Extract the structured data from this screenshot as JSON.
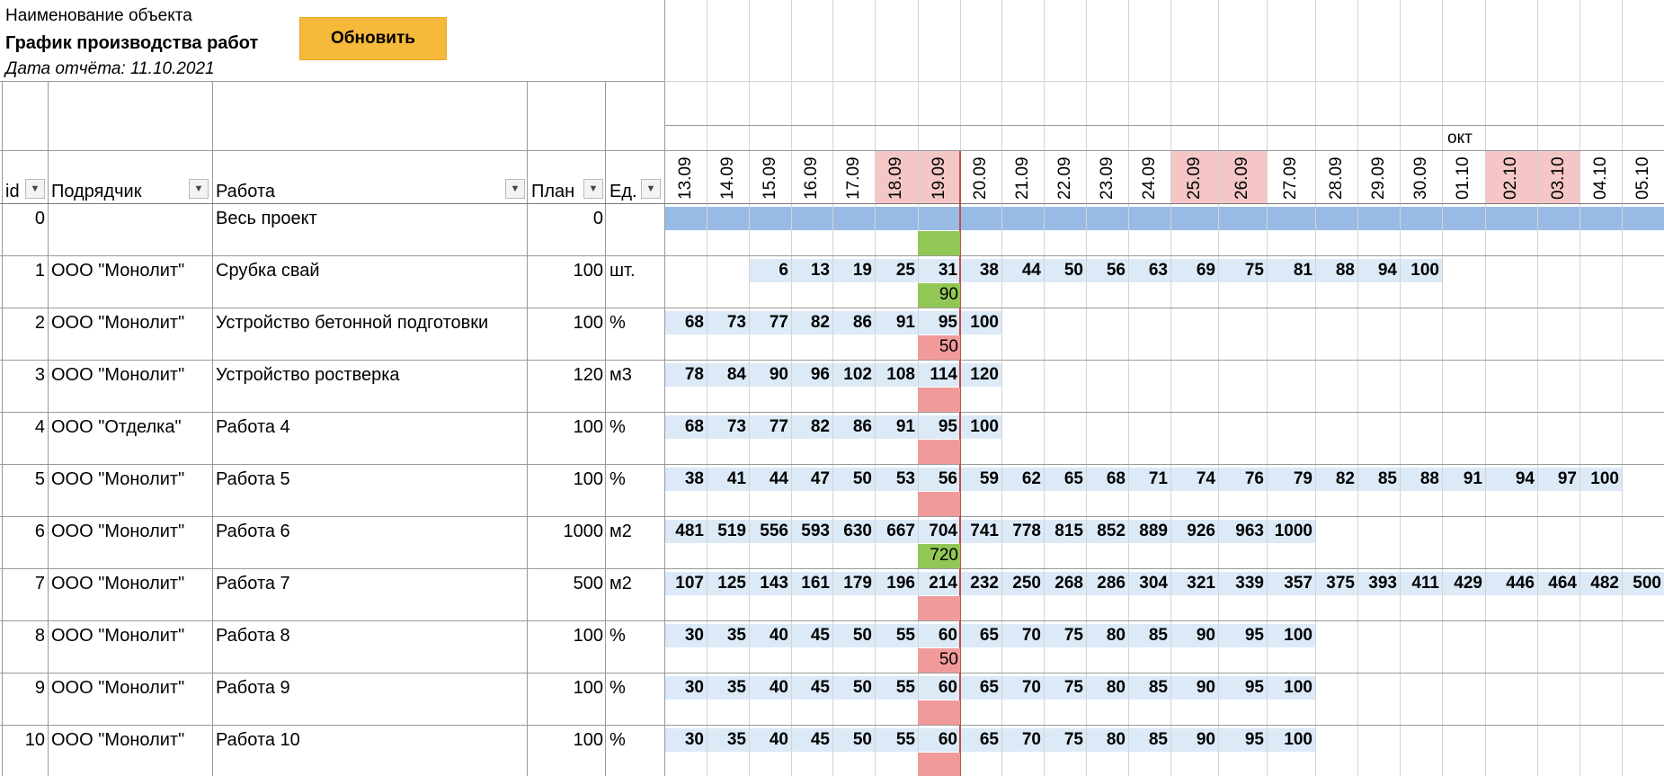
{
  "header": {
    "object_name": "Наименование объекта",
    "title": "График производства работ",
    "report_date": "Дата отчёта: 11.10.2021",
    "refresh_button": "Обновить"
  },
  "columns": {
    "id": "id",
    "contractor": "Подрядчик",
    "work": "Работа",
    "plan": "План",
    "unit": "Ед."
  },
  "month_label": "окт",
  "dates": [
    "13.09",
    "14.09",
    "15.09",
    "16.09",
    "17.09",
    "18.09",
    "19.09",
    "20.09",
    "21.09",
    "22.09",
    "23.09",
    "24.09",
    "25.09",
    "26.09",
    "27.09",
    "28.09",
    "29.09",
    "30.09",
    "01.10",
    "02.10",
    "03.10",
    "04.10",
    "05.10"
  ],
  "weekend_dates": [
    "18.09",
    "19.09",
    "25.09",
    "26.09",
    "02.10",
    "03.10"
  ],
  "today_date": "19.09",
  "colors": {
    "button": "#f6b93b",
    "weekend_header": "#f4c6c6",
    "plan_bar": "#dce9f7",
    "project_bar": "#97bbe4",
    "fact_ok": "#92c755",
    "fact_behind": "#f19a9a"
  },
  "rows": [
    {
      "id": "0",
      "contractor": "",
      "work": "Весь проект",
      "plan": "0",
      "unit": "",
      "project": true,
      "fact": "",
      "fact_status": "ok",
      "values": []
    },
    {
      "id": "1",
      "contractor": "ООО \"Монолит\"",
      "work": "Срубка свай",
      "plan": "100",
      "unit": "шт.",
      "fact": "90",
      "fact_status": "ok",
      "values": [
        "",
        "",
        "6",
        "13",
        "19",
        "25",
        "31",
        "38",
        "44",
        "50",
        "56",
        "63",
        "69",
        "75",
        "81",
        "88",
        "94",
        "100"
      ]
    },
    {
      "id": "2",
      "contractor": "ООО \"Монолит\"",
      "work": "Устройство бетонной подготовки",
      "plan": "100",
      "unit": "%",
      "fact": "50",
      "fact_status": "behind",
      "values": [
        "68",
        "73",
        "77",
        "82",
        "86",
        "91",
        "95",
        "100"
      ]
    },
    {
      "id": "3",
      "contractor": "ООО \"Монолит\"",
      "work": "Устройство ростверка",
      "plan": "120",
      "unit": "м3",
      "fact": "",
      "fact_status": "behind",
      "values": [
        "78",
        "84",
        "90",
        "96",
        "102",
        "108",
        "114",
        "120"
      ]
    },
    {
      "id": "4",
      "contractor": "ООО \"Отделка\"",
      "work": "Работа 4",
      "plan": "100",
      "unit": "%",
      "fact": "",
      "fact_status": "behind",
      "values": [
        "68",
        "73",
        "77",
        "82",
        "86",
        "91",
        "95",
        "100"
      ]
    },
    {
      "id": "5",
      "contractor": "ООО \"Монолит\"",
      "work": "Работа 5",
      "plan": "100",
      "unit": "%",
      "fact": "",
      "fact_status": "behind",
      "values": [
        "38",
        "41",
        "44",
        "47",
        "50",
        "53",
        "56",
        "59",
        "62",
        "65",
        "68",
        "71",
        "74",
        "76",
        "79",
        "82",
        "85",
        "88",
        "91",
        "94",
        "97",
        "100"
      ]
    },
    {
      "id": "6",
      "contractor": "ООО \"Монолит\"",
      "work": "Работа 6",
      "plan": "1000",
      "unit": "м2",
      "fact": "720",
      "fact_status": "ok",
      "values": [
        "481",
        "519",
        "556",
        "593",
        "630",
        "667",
        "704",
        "741",
        "778",
        "815",
        "852",
        "889",
        "926",
        "963",
        "1000"
      ]
    },
    {
      "id": "7",
      "contractor": "ООО \"Монолит\"",
      "work": "Работа 7",
      "plan": "500",
      "unit": "м2",
      "fact": "",
      "fact_status": "behind",
      "values": [
        "107",
        "125",
        "143",
        "161",
        "179",
        "196",
        "214",
        "232",
        "250",
        "268",
        "286",
        "304",
        "321",
        "339",
        "357",
        "375",
        "393",
        "411",
        "429",
        "446",
        "464",
        "482",
        "500"
      ]
    },
    {
      "id": "8",
      "contractor": "ООО \"Монолит\"",
      "work": "Работа 8",
      "plan": "100",
      "unit": "%",
      "fact": "50",
      "fact_status": "behind",
      "values": [
        "30",
        "35",
        "40",
        "45",
        "50",
        "55",
        "60",
        "65",
        "70",
        "75",
        "80",
        "85",
        "90",
        "95",
        "100"
      ]
    },
    {
      "id": "9",
      "contractor": "ООО \"Монолит\"",
      "work": "Работа 9",
      "plan": "100",
      "unit": "%",
      "fact": "",
      "fact_status": "behind",
      "values": [
        "30",
        "35",
        "40",
        "45",
        "50",
        "55",
        "60",
        "65",
        "70",
        "75",
        "80",
        "85",
        "90",
        "95",
        "100"
      ]
    },
    {
      "id": "10",
      "contractor": "ООО \"Монолит\"",
      "work": "Работа 10",
      "plan": "100",
      "unit": "%",
      "fact": "",
      "fact_status": "behind",
      "values": [
        "30",
        "35",
        "40",
        "45",
        "50",
        "55",
        "60",
        "65",
        "70",
        "75",
        "80",
        "85",
        "90",
        "95",
        "100"
      ]
    }
  ]
}
